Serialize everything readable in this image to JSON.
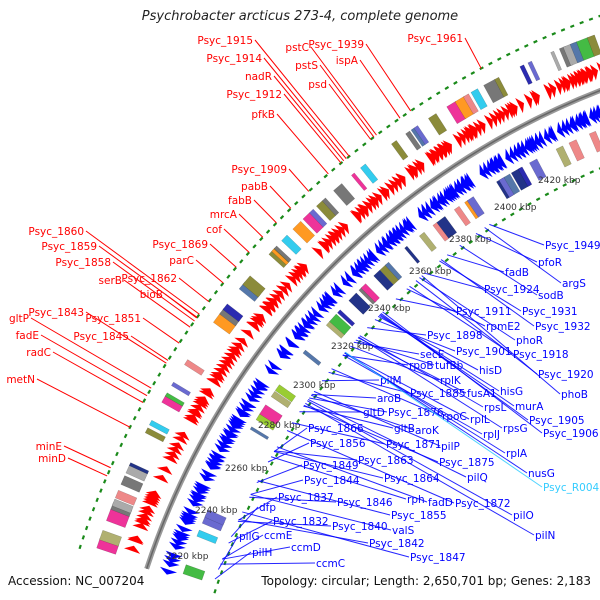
{
  "title": "Psychrobacter arcticus 273-4, complete genome",
  "footer": {
    "accession": "Accession: NC_007204",
    "stats": "Topology: circular; Length: 2,650,701 bp; Genes: 2,183"
  },
  "colors": {
    "forward": "#ff0000",
    "reverse": "#0000ff",
    "rna": "#33ccff",
    "backbone": "#888888",
    "ring_dots": "#1a8a1a"
  },
  "kbp_ticks": [
    "2420 kbp",
    "2400 kbp",
    "2380 kbp",
    "2360 kbp",
    "2340 kbp",
    "2320 kbp",
    "2300 kbp",
    "2280 kbp",
    "2260 kbp",
    "2240 kbp",
    "2220 kbp"
  ],
  "forward_labels": [
    "Psyc_1915",
    "Psyc_1914",
    "nadR",
    "Psyc_1912",
    "pfkB",
    "pstC",
    "pstS",
    "psd",
    "Psyc_1939",
    "ispA",
    "Psyc_1961",
    "Psyc_1909",
    "pabB",
    "fabB",
    "mrcA",
    "cof",
    "Psyc_1869",
    "parC",
    "Psyc_1860",
    "Psyc_1859",
    "Psyc_1858",
    "serB",
    "Psyc_1862",
    "bioB",
    "Psyc_1843",
    "gltP",
    "Psyc_1851",
    "fadE",
    "Psyc_1845",
    "radC",
    "metN",
    "minE",
    "minD"
  ],
  "reverse_labels": [
    "Psyc_1949",
    "pfoR",
    "argS",
    "fadB",
    "sodB",
    "Psyc_1924",
    "Psyc_1931",
    "Psyc_1911",
    "Psyc_1932",
    "rpmE2",
    "phoR",
    "Psyc_1898",
    "Psyc_1918",
    "Psyc_1901",
    "secE",
    "Psyc_1920",
    "rpoB",
    "tufBb",
    "hisD",
    "rplK",
    "pilM",
    "phoB",
    "Psyc_1885",
    "fusA1",
    "hisG",
    "aroB",
    "rpsL",
    "murA",
    "gltD",
    "Psyc_1876",
    "rpoC",
    "rplL",
    "Psyc_1905",
    "rpsG",
    "Psyc_1906",
    "Psyc_1866",
    "gltB",
    "aroK",
    "Psyc_1871",
    "rplJ",
    "pilP",
    "Psyc_1856",
    "rplA",
    "Psyc_1863",
    "Psyc_1875",
    "Psyc_1849",
    "nusG",
    "Psyc_1844",
    "Psyc_1864",
    "pilQ",
    "Psyc_R0045",
    "rph",
    "fadD",
    "Psyc_1872",
    "Psyc_1837",
    "Psyc_1846",
    "dfp",
    "Psyc_1855",
    "pilO",
    "Psyc_1832",
    "Psyc_1840",
    "valS",
    "pilN",
    "pilG",
    "ccmE",
    "Psyc_1842",
    "pilH",
    "ccmD",
    "Psyc_1847",
    "ccmC"
  ]
}
